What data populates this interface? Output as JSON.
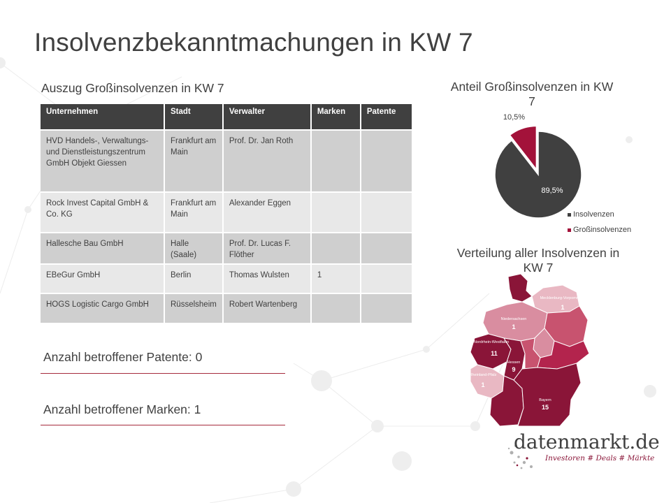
{
  "title": "Insolvenzbekanntmachungen in KW 7",
  "table": {
    "heading": "Auszug Großinsolvenzen in KW 7",
    "columns": [
      "Unternehmen",
      "Stadt",
      "Verwalter",
      "Marken",
      "Patente"
    ],
    "rows": [
      {
        "company": "HVD Handels-, Verwaltungs- und Dienstleistungszentrum GmbH Objekt Giessen",
        "city": "Frankfurt am Main",
        "administrator": "Prof. Dr. Jan Roth",
        "marks": "",
        "patents": ""
      },
      {
        "company": "Rock Invest Capital GmbH & Co. KG",
        "city": "Frankfurt am Main",
        "administrator": "Alexander Eggen",
        "marks": "",
        "patents": ""
      },
      {
        "company": "Hallesche Bau GmbH",
        "city": "Halle (Saale)",
        "administrator": "Prof. Dr. Lucas F. Flöther",
        "marks": "",
        "patents": ""
      },
      {
        "company": "EBeGur GmbH",
        "city": "Berlin",
        "administrator": "Thomas Wulsten",
        "marks": "1",
        "patents": ""
      },
      {
        "company": "HOGS Logistic Cargo GmbH",
        "city": "Rüsselsheim",
        "administrator": "Robert Wartenberg",
        "marks": "",
        "patents": ""
      }
    ]
  },
  "stats": {
    "patents": "Anzahl betroffener Patente: 0",
    "marks": "Anzahl betroffener Marken: 1"
  },
  "chart_data": [
    {
      "type": "pie",
      "title": "Anteil Großinsolvenzen in KW 7",
      "labels": [
        "Insolvenzen",
        "Großinsolvenzen"
      ],
      "values": [
        89.5,
        10.5
      ],
      "value_labels": [
        "89,5%",
        "10,5%"
      ],
      "colors": [
        "#404040",
        "#a3123a"
      ],
      "legend_position": "bottom-right"
    },
    {
      "type": "map",
      "title": "Verteilung aller Insolvenzen in KW 7",
      "regions": [
        {
          "name": "Mecklenburg-Vorpommern",
          "value": 1
        },
        {
          "name": "Niedersachsen",
          "value": 1
        },
        {
          "name": "Nordrhein-Westfalen",
          "value": 11
        },
        {
          "name": "Hessen",
          "value": 9
        },
        {
          "name": "Rheinland-Pfalz",
          "value": 1
        },
        {
          "name": "Bayern",
          "value": 15
        }
      ]
    }
  ],
  "logo": {
    "name": "datenmarkt.de",
    "tagline": "Investoren # Deals # Märkte"
  }
}
